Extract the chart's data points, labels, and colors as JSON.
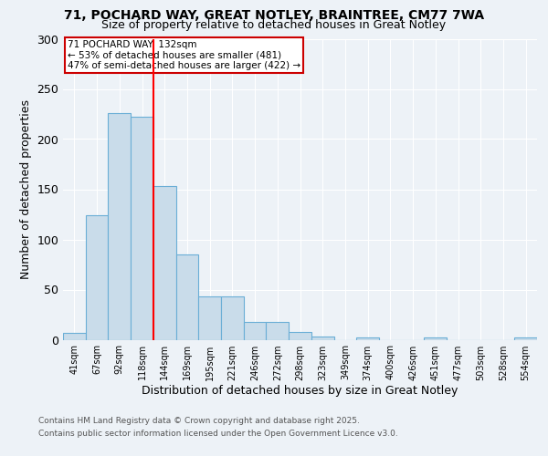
{
  "title1": "71, POCHARD WAY, GREAT NOTLEY, BRAINTREE, CM77 7WA",
  "title2": "Size of property relative to detached houses in Great Notley",
  "xlabel": "Distribution of detached houses by size in Great Notley",
  "ylabel": "Number of detached properties",
  "categories": [
    "41sqm",
    "67sqm",
    "92sqm",
    "118sqm",
    "144sqm",
    "169sqm",
    "195sqm",
    "221sqm",
    "246sqm",
    "272sqm",
    "298sqm",
    "323sqm",
    "349sqm",
    "374sqm",
    "400sqm",
    "426sqm",
    "451sqm",
    "477sqm",
    "503sqm",
    "528sqm",
    "554sqm"
  ],
  "values": [
    7,
    124,
    226,
    222,
    153,
    85,
    43,
    43,
    18,
    18,
    8,
    3,
    0,
    2,
    0,
    0,
    2,
    0,
    0,
    0,
    2
  ],
  "bar_color": "#c9dcea",
  "bar_edge_color": "#6aaed6",
  "red_line_x": 3.5,
  "annotation_text": "71 POCHARD WAY: 132sqm\n← 53% of detached houses are smaller (481)\n47% of semi-detached houses are larger (422) →",
  "annotation_box_color": "#ffffff",
  "annotation_box_edge_color": "#cc0000",
  "ylim": [
    0,
    300
  ],
  "yticks": [
    0,
    50,
    100,
    150,
    200,
    250,
    300
  ],
  "footer1": "Contains HM Land Registry data © Crown copyright and database right 2025.",
  "footer2": "Contains public sector information licensed under the Open Government Licence v3.0.",
  "bg_color": "#edf2f7",
  "grid_color": "#ffffff",
  "title1_fontsize": 10,
  "title2_fontsize": 9
}
